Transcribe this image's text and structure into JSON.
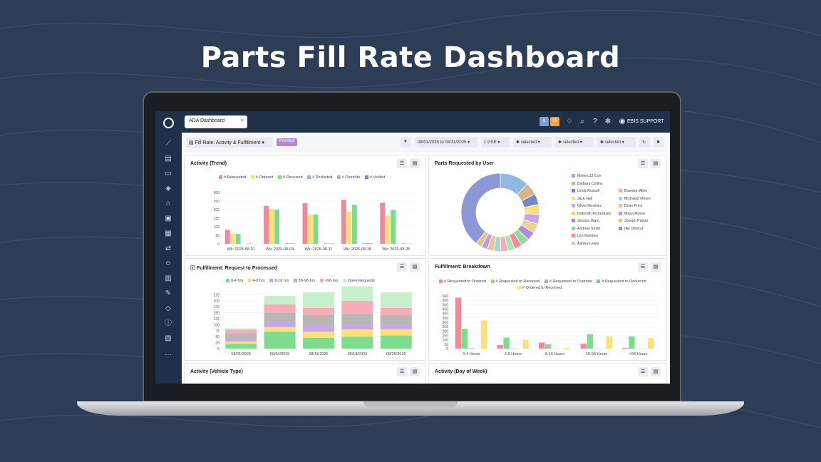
{
  "headline": "Parts Fill Rate Dashboard",
  "tab": {
    "label": "ADA Dashboard",
    "close": "×"
  },
  "topbar": {
    "badge_a": "8",
    "badge_b": "28",
    "user": "EBIS SUPPORT"
  },
  "toolbar": {
    "report": "Fill Rate: Activity & Fulfillment",
    "preview": "Preview",
    "date_range": "08/01/2025 to 08/31/2025",
    "filter1": "1  GSE",
    "filter2": "selected",
    "filter3": "selected",
    "filter4": "selected"
  },
  "colors": {
    "requested": "#f08a98",
    "ordered": "#fde07a",
    "received": "#7fdc8f",
    "deducted": "#8fb8e3",
    "override": "#b0b0b0",
    "voided": "#7a86c9",
    "open": "#c8efcc",
    "h0_4": "#7fdc8f",
    "h4_8": "#fde07a",
    "h8_16": "#c9a7e6",
    "h16_96": "#b7b7b7",
    "h96": "#f5aeb6"
  },
  "panels": {
    "trend": {
      "title": "Activity (Trend)",
      "legend": [
        "# Requested",
        "# Ordered",
        "# Received",
        "# Deducted",
        "# Override",
        "# Voided"
      ]
    },
    "by_user": {
      "title": "Parts Requested by User",
      "legend": [
        "Minhec12 Cox",
        "Barbara Collins",
        "Linda Russell",
        "Brandon Allen",
        "Jack Hall",
        "Michael2 Moore",
        "Olivia Martinez",
        "Brian Price",
        "Deborah Richardson",
        "Maria Moore",
        "Jessica Ward",
        "Joseph Parker",
        "Andrew Smith",
        "(All Others)",
        "Leo Ramirez",
        "Ashley Lewis"
      ]
    },
    "req_proc": {
      "title": "Fulfillment: Request to Processed",
      "legend": [
        "0-4 hrs",
        "4-8 hrs",
        "8-16 hrs",
        "16-96 hrs",
        ">96 hrs",
        "Open Requests"
      ]
    },
    "breakdown": {
      "title": "Fulfillment: Breakdown",
      "legend": [
        "# Requested to Ordered",
        "# Requested to Received",
        "# Requested to Override",
        "# Requested to Deducted",
        "# Ordered to Received"
      ]
    },
    "vehicle": {
      "title": "Activity (Vehicle Type)"
    },
    "dow": {
      "title": "Activity (Day of Week)"
    }
  },
  "chart_data": [
    {
      "type": "bar",
      "title": "Activity (Trend)",
      "categories": [
        "Wk: 2025-08-01",
        "Wk: 2025-08-04",
        "Wk: 2025-08-11",
        "Wk: 2025-08-18",
        "Wk: 2025-08-25"
      ],
      "ylim": [
        0,
        300
      ],
      "yticks": [
        0,
        50,
        100,
        150,
        200,
        250,
        300
      ],
      "series": [
        {
          "name": "# Requested",
          "values": [
            82,
            222,
            238,
            258,
            240
          ]
        },
        {
          "name": "# Ordered",
          "values": [
            60,
            205,
            170,
            188,
            165
          ]
        },
        {
          "name": "# Received",
          "values": [
            58,
            200,
            172,
            228,
            198
          ]
        },
        {
          "name": "# Deducted",
          "values": [
            0,
            0,
            0,
            0,
            0
          ]
        },
        {
          "name": "# Override",
          "values": [
            2,
            3,
            3,
            4,
            3
          ]
        },
        {
          "name": "# Voided",
          "values": [
            0,
            2,
            2,
            2,
            1
          ]
        }
      ]
    },
    {
      "type": "pie",
      "title": "Parts Requested by User",
      "labels": [
        "Minhec12 Cox",
        "Barbara Collins",
        "Linda Russell",
        "Jack Hall",
        "Olivia Martinez",
        "Deborah Richardson",
        "Jessica Ward",
        "Andrew Smith",
        "Leo Ramirez",
        "Ashley Lewis",
        "Brandon Allen",
        "Michael2 Moore",
        "Brian Price",
        "Maria Moore",
        "Joseph Parker",
        "(All Others)"
      ],
      "values": [
        12,
        5,
        4.5,
        4,
        4,
        3.8,
        3.6,
        3.4,
        3.2,
        3,
        2.9,
        2.8,
        2.7,
        2.6,
        2.5,
        39
      ]
    },
    {
      "type": "bar",
      "title": "Fulfillment: Request to Processed",
      "categories": [
        "08/01/2025",
        "08/04/2025",
        "08/11/2025",
        "08/18/2025",
        "08/25/2025"
      ],
      "ylim": [
        0,
        250
      ],
      "yticks": [
        0,
        25,
        50,
        75,
        100,
        125,
        150,
        175,
        200,
        225
      ],
      "stacked": true,
      "series": [
        {
          "name": "0-4 hrs",
          "values": [
            20,
            70,
            45,
            50,
            55
          ]
        },
        {
          "name": "4-8 hrs",
          "values": [
            10,
            20,
            25,
            30,
            25
          ]
        },
        {
          "name": "8-16 hrs",
          "values": [
            10,
            20,
            25,
            20,
            20
          ]
        },
        {
          "name": "16-96 hrs",
          "values": [
            25,
            40,
            45,
            45,
            40
          ]
        },
        {
          "name": ">96 hrs",
          "values": [
            15,
            35,
            30,
            55,
            30
          ]
        },
        {
          "name": "Open Requests",
          "values": [
            5,
            35,
            65,
            60,
            65
          ]
        }
      ]
    },
    {
      "type": "bar",
      "title": "Fulfillment: Breakdown",
      "categories": [
        "0-4 Hours",
        "4-8 Hours",
        "8-16 Hours",
        "16-96 Hours",
        ">96 Hours"
      ],
      "ylim": [
        0,
        600
      ],
      "yticks": [
        0,
        50,
        100,
        150,
        200,
        250,
        300,
        350,
        400,
        450,
        500,
        550,
        600
      ],
      "series": [
        {
          "name": "# Requested to Ordered",
          "values": [
            580,
            40,
            70,
            55,
            10
          ]
        },
        {
          "name": "# Requested to Received",
          "values": [
            225,
            125,
            50,
            165,
            140
          ]
        },
        {
          "name": "# Requested to Override",
          "values": [
            5,
            2,
            2,
            2,
            2
          ]
        },
        {
          "name": "# Requested to Deducted",
          "values": [
            0,
            0,
            0,
            0,
            0
          ]
        },
        {
          "name": "# Ordered to Received",
          "values": [
            320,
            100,
            10,
            140,
            120
          ]
        }
      ]
    }
  ]
}
